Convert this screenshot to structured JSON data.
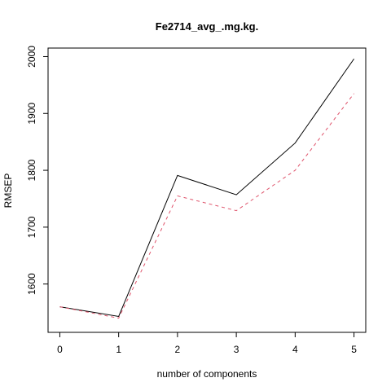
{
  "chart_data": {
    "type": "line",
    "title": "Fe2714_avg_.mg.kg.",
    "xlabel": "number of components",
    "ylabel": "RMSEP",
    "x": [
      0,
      1,
      2,
      3,
      4,
      5
    ],
    "xlim": [
      -0.2,
      5.2
    ],
    "ylim": [
      1515,
      2015
    ],
    "xticks": [
      "0",
      "1",
      "2",
      "3",
      "4",
      "5"
    ],
    "yticks": [
      "1600",
      "1700",
      "1800",
      "1900",
      "2000"
    ],
    "grid": false,
    "legend": "none",
    "series": [
      {
        "values": [
          1560,
          1543,
          1791,
          1757,
          1848,
          1996
        ],
        "color": "#000000",
        "style": "solid"
      },
      {
        "values": [
          1560,
          1540,
          1755,
          1729,
          1800,
          1935
        ],
        "color": "#DF536B",
        "style": "dashed"
      }
    ]
  }
}
